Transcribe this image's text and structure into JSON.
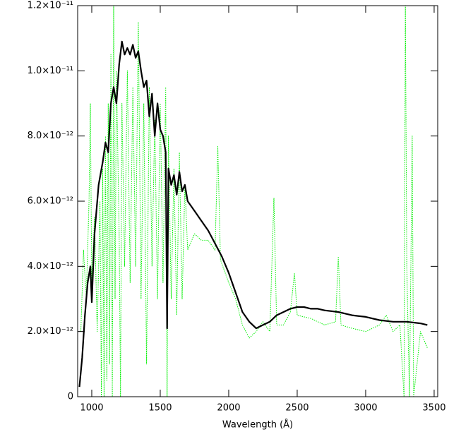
{
  "chart_data": {
    "type": "line",
    "xlabel": "Wavelength (Å)",
    "xlim": [
      897,
      3526
    ],
    "xticks": [
      1000,
      1500,
      2000,
      2500,
      3000,
      3500
    ],
    "ylim": [
      0,
      1.2e-11
    ],
    "yticks": [
      0,
      {
        "value": 2e-12,
        "label": "2.0×10⁻¹²"
      },
      {
        "value": 4e-12,
        "label": "4.0×10⁻¹²"
      },
      {
        "value": 6e-12,
        "label": "6.0×10⁻¹²"
      },
      {
        "value": 8e-12,
        "label": "8.0×10⁻¹²"
      },
      {
        "value": 1e-11,
        "label": "1.0×10⁻¹¹"
      },
      {
        "value": 1.2e-11,
        "label": "1.2×10⁻¹¹"
      }
    ],
    "series": [
      {
        "color": "#00ee00",
        "style": "dotted",
        "x": [
          920,
          940,
          960,
          980,
          990,
          1000,
          1020,
          1040,
          1060,
          1070,
          1080,
          1090,
          1100,
          1110,
          1120,
          1130,
          1140,
          1150,
          1160,
          1170,
          1180,
          1200,
          1210,
          1220,
          1240,
          1260,
          1280,
          1300,
          1320,
          1340,
          1360,
          1380,
          1400,
          1420,
          1440,
          1460,
          1480,
          1500,
          1520,
          1540,
          1550,
          1560,
          1580,
          1600,
          1620,
          1640,
          1660,
          1680,
          1700,
          1750,
          1800,
          1850,
          1900,
          1920,
          1940,
          2000,
          2050,
          2100,
          2150,
          2200,
          2250,
          2300,
          2330,
          2350,
          2400,
          2450,
          2480,
          2500,
          2600,
          2700,
          2780,
          2800,
          2820,
          2900,
          3000,
          3100,
          3150,
          3200,
          3250,
          3280,
          3290,
          3300,
          3320,
          3340,
          3350,
          3400,
          3450
        ],
        "values": [
          2e-12,
          4.5e-12,
          3e-12,
          6e-12,
          9e-12,
          3.5e-12,
          5.5e-12,
          2e-12,
          6e-12,
          0,
          7e-12,
          0,
          8e-12,
          5e-13,
          9e-12,
          1e-12,
          1.05e-11,
          0,
          1.2e-11,
          3e-12,
          1e-11,
          5e-12,
          0,
          9e-12,
          4e-12,
          1e-11,
          3.5e-12,
          9.5e-12,
          4e-12,
          1.15e-11,
          3e-12,
          9e-12,
          1e-12,
          9.5e-12,
          4e-12,
          8.5e-12,
          3e-12,
          9e-12,
          3.5e-12,
          9.5e-12,
          0,
          8e-12,
          3e-12,
          7e-12,
          2.5e-12,
          7.5e-12,
          3e-12,
          6.5e-12,
          4.5e-12,
          5e-12,
          4.8e-12,
          4.8e-12,
          4.5e-12,
          7.7e-12,
          4.2e-12,
          3.5e-12,
          3e-12,
          2.2e-12,
          1.8e-12,
          2e-12,
          2.3e-12,
          2e-12,
          6.1e-12,
          2.2e-12,
          2.2e-12,
          2.6e-12,
          3.8e-12,
          2.5e-12,
          2.4e-12,
          2.2e-12,
          2.3e-12,
          4.3e-12,
          2.2e-12,
          2.1e-12,
          2e-12,
          2.2e-12,
          2.5e-12,
          2e-12,
          2.2e-12,
          0,
          1.2e-11,
          4e-12,
          0,
          8e-12,
          0,
          2e-12,
          1.5e-12
        ]
      },
      {
        "color": "#000000",
        "style": "solid",
        "x": [
          910,
          930,
          950,
          970,
          990,
          1000,
          1020,
          1050,
          1080,
          1100,
          1120,
          1140,
          1160,
          1180,
          1200,
          1220,
          1240,
          1260,
          1280,
          1300,
          1320,
          1340,
          1360,
          1380,
          1400,
          1420,
          1440,
          1460,
          1480,
          1500,
          1520,
          1540,
          1550,
          1560,
          1580,
          1600,
          1620,
          1640,
          1660,
          1680,
          1700,
          1750,
          1800,
          1850,
          1900,
          1950,
          2000,
          2050,
          2100,
          2150,
          2200,
          2250,
          2300,
          2350,
          2400,
          2450,
          2500,
          2550,
          2600,
          2650,
          2700,
          2800,
          2900,
          3000,
          3100,
          3200,
          3300,
          3400,
          3450
        ],
        "values": [
          3e-13,
          1.2e-12,
          2.5e-12,
          3.5e-12,
          4e-12,
          2.9e-12,
          5e-12,
          6.5e-12,
          7.2e-12,
          7.8e-12,
          7.5e-12,
          9e-12,
          9.5e-12,
          9e-12,
          1.02e-11,
          1.09e-11,
          1.05e-11,
          1.07e-11,
          1.05e-11,
          1.08e-11,
          1.04e-11,
          1.06e-11,
          1e-11,
          9.5e-12,
          9.7e-12,
          8.6e-12,
          9.3e-12,
          8e-12,
          9e-12,
          8.2e-12,
          8e-12,
          7.5e-12,
          2.1e-12,
          7e-12,
          6.5e-12,
          6.8e-12,
          6.2e-12,
          6.9e-12,
          6.3e-12,
          6.5e-12,
          6e-12,
          5.7e-12,
          5.4e-12,
          5.1e-12,
          4.7e-12,
          4.3e-12,
          3.8e-12,
          3.2e-12,
          2.6e-12,
          2.3e-12,
          2.1e-12,
          2.2e-12,
          2.3e-12,
          2.5e-12,
          2.6e-12,
          2.7e-12,
          2.75e-12,
          2.75e-12,
          2.7e-12,
          2.7e-12,
          2.65e-12,
          2.6e-12,
          2.5e-12,
          2.45e-12,
          2.35e-12,
          2.3e-12,
          2.3e-12,
          2.25e-12,
          2.2e-12
        ]
      }
    ]
  }
}
